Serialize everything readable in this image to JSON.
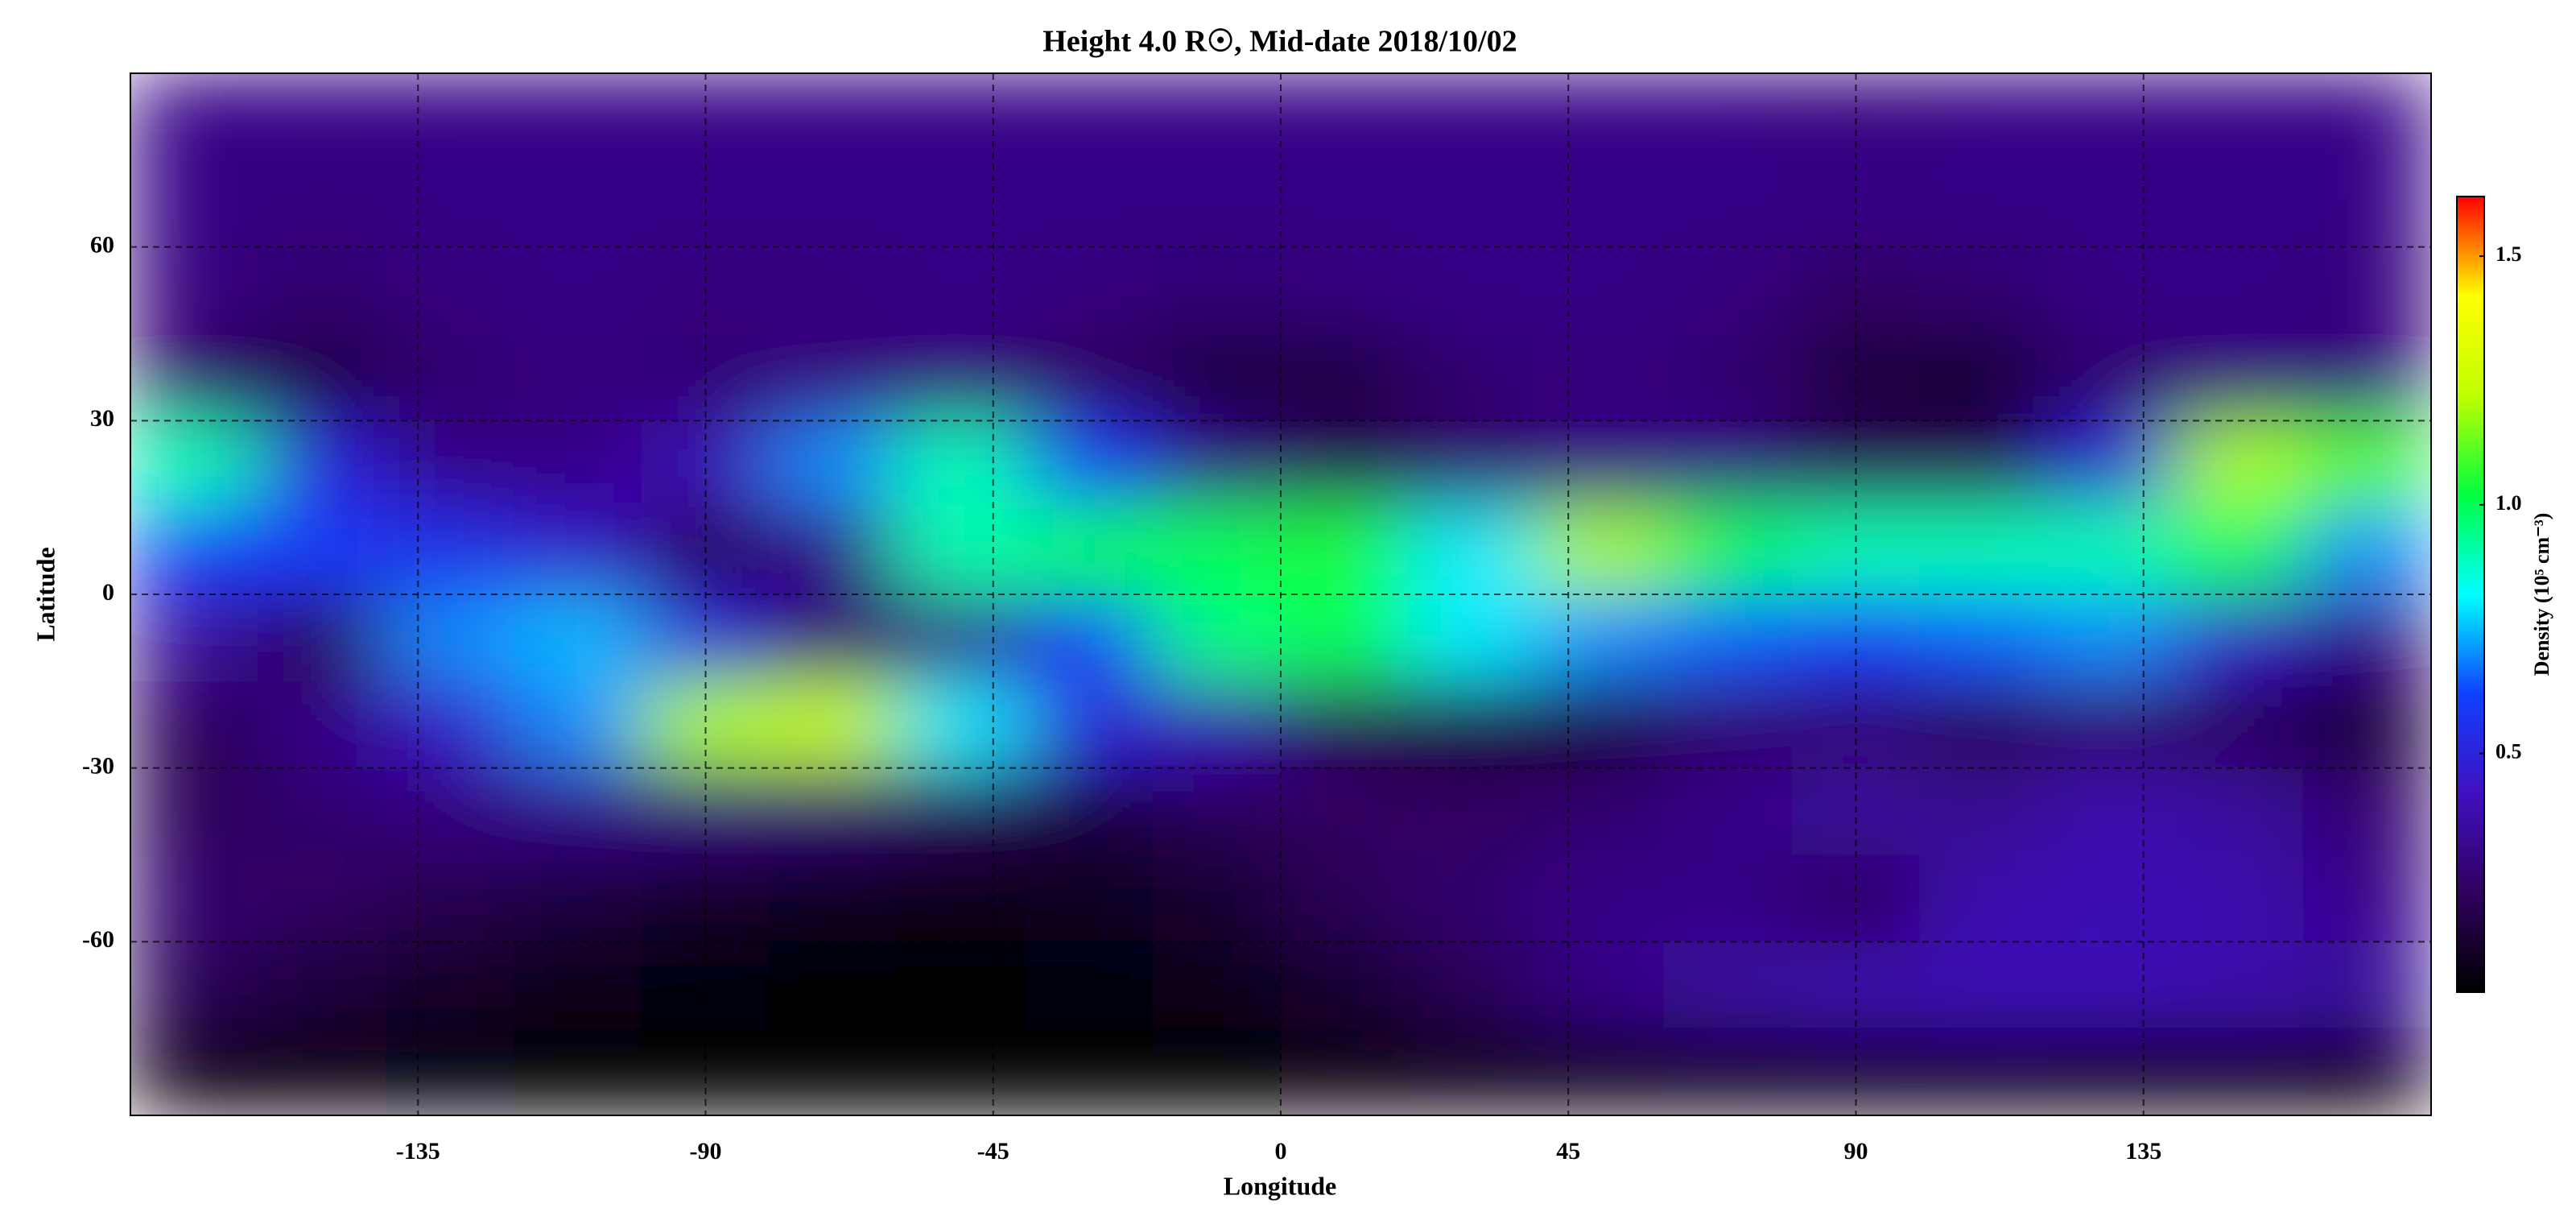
{
  "chart_data": {
    "type": "heatmap",
    "title": "Height 4.0 R☉, Mid-date 2018/10/02",
    "x_label": "Longitude",
    "y_label": "Latitude",
    "colorbar_label": "Density (10⁵ cm⁻³)",
    "x": [
      -170,
      -150,
      -130,
      -110,
      -90,
      -70,
      -50,
      -30,
      -10,
      10,
      30,
      50,
      70,
      90,
      110,
      130,
      150,
      170
    ],
    "y": [
      82.5,
      67.5,
      52.5,
      37.5,
      22.5,
      7.5,
      -7.5,
      -22.5,
      -37.5,
      -52.5,
      -67.5,
      -82.5
    ],
    "z": [
      [
        0.3,
        0.3,
        0.3,
        0.3,
        0.3,
        0.3,
        0.3,
        0.3,
        0.3,
        0.3,
        0.3,
        0.3,
        0.3,
        0.28,
        0.3,
        0.3,
        0.3,
        0.3
      ],
      [
        0.3,
        0.28,
        0.3,
        0.3,
        0.3,
        0.3,
        0.3,
        0.3,
        0.3,
        0.3,
        0.3,
        0.3,
        0.3,
        0.3,
        0.3,
        0.3,
        0.3,
        0.3
      ],
      [
        0.28,
        0.25,
        0.28,
        0.3,
        0.28,
        0.28,
        0.3,
        0.28,
        0.26,
        0.28,
        0.3,
        0.3,
        0.28,
        0.22,
        0.25,
        0.3,
        0.3,
        0.28
      ],
      [
        0.25,
        0.15,
        0.25,
        0.28,
        0.26,
        0.28,
        0.28,
        0.22,
        0.15,
        0.15,
        0.25,
        0.28,
        0.25,
        0.15,
        0.12,
        0.25,
        0.28,
        0.28
      ],
      [
        0.9,
        0.5,
        0.3,
        0.3,
        0.4,
        0.7,
        0.9,
        0.6,
        0.3,
        0.2,
        0.25,
        0.3,
        0.3,
        0.2,
        0.2,
        0.5,
        1.2,
        1.1
      ],
      [
        0.6,
        0.6,
        0.55,
        0.45,
        0.2,
        0.3,
        0.9,
        1.0,
        1.0,
        1.05,
        0.8,
        1.2,
        1.0,
        0.9,
        0.9,
        0.9,
        1.0,
        0.7
      ],
      [
        0.35,
        0.2,
        0.7,
        0.75,
        0.5,
        0.25,
        0.3,
        0.6,
        0.95,
        1.0,
        0.8,
        0.7,
        0.65,
        0.6,
        0.65,
        0.7,
        0.45,
        0.3
      ],
      [
        0.2,
        0.3,
        0.45,
        0.7,
        1.2,
        1.25,
        0.8,
        0.5,
        0.4,
        0.2,
        0.15,
        0.15,
        0.25,
        0.25,
        0.2,
        0.25,
        0.2,
        0.12
      ],
      [
        0.2,
        0.25,
        0.28,
        0.3,
        0.28,
        0.25,
        0.2,
        0.15,
        0.2,
        0.22,
        0.22,
        0.25,
        0.3,
        0.35,
        0.32,
        0.38,
        0.35,
        0.25
      ],
      [
        0.25,
        0.22,
        0.18,
        0.15,
        0.1,
        0.08,
        0.07,
        0.08,
        0.12,
        0.2,
        0.25,
        0.3,
        0.3,
        0.2,
        0.38,
        0.4,
        0.38,
        0.3
      ],
      [
        0.2,
        0.15,
        0.1,
        0.06,
        0.04,
        0.03,
        0.03,
        0.04,
        0.06,
        0.12,
        0.2,
        0.3,
        0.35,
        0.38,
        0.4,
        0.4,
        0.38,
        0.35
      ],
      [
        0.05,
        0.05,
        0.04,
        0.03,
        0.02,
        0.02,
        0.02,
        0.02,
        0.03,
        0.05,
        0.06,
        0.07,
        0.08,
        0.08,
        0.08,
        0.07,
        0.06,
        0.05
      ]
    ],
    "xlim": [
      -180,
      180
    ],
    "xticks": [
      -135,
      -90,
      -45,
      0,
      45,
      90,
      135
    ],
    "ylim": [
      -90,
      90
    ],
    "yticks": [
      -60,
      -30,
      0,
      30,
      60
    ],
    "grid": true,
    "clim": [
      0.02,
      1.62
    ],
    "cticks": [
      0.5,
      {
        "value": 1,
        "label": "1.0"
      },
      1.5
    ],
    "colorscale": [
      "#000000",
      "#300060",
      "#4010c0",
      "#1040ff",
      "#00ffff",
      "#00ff40",
      "#c0ff00",
      "#ffff00",
      "#ff0000"
    ]
  }
}
